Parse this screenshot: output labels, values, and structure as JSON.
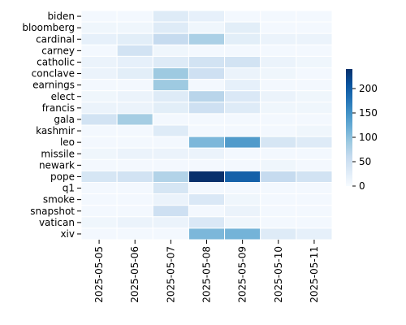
{
  "chart_data": {
    "type": "heatmap",
    "title": "",
    "xlabel": "",
    "ylabel": "",
    "x": [
      "2025-05-05",
      "2025-05-06",
      "2025-05-07",
      "2025-05-08",
      "2025-05-09",
      "2025-05-10",
      "2025-05-11"
    ],
    "y": [
      "biden",
      "bloomberg",
      "cardinal",
      "carney",
      "catholic",
      "conclave",
      "earnings",
      "elect",
      "francis",
      "gala",
      "kashmir",
      "leo",
      "missile",
      "newark",
      "pope",
      "q1",
      "smoke",
      "snapshot",
      "vatican",
      "xiv"
    ],
    "values": [
      [
        5,
        5,
        30,
        20,
        5,
        5,
        5
      ],
      [
        10,
        10,
        30,
        10,
        25,
        5,
        5
      ],
      [
        20,
        25,
        60,
        80,
        25,
        15,
        15
      ],
      [
        5,
        45,
        10,
        5,
        5,
        5,
        5
      ],
      [
        15,
        20,
        30,
        45,
        45,
        15,
        10
      ],
      [
        15,
        25,
        90,
        50,
        15,
        10,
        5
      ],
      [
        5,
        5,
        90,
        5,
        20,
        5,
        5
      ],
      [
        10,
        15,
        30,
        70,
        35,
        15,
        10
      ],
      [
        15,
        15,
        25,
        50,
        30,
        10,
        10
      ],
      [
        45,
        85,
        5,
        5,
        5,
        5,
        5
      ],
      [
        5,
        5,
        30,
        5,
        5,
        5,
        10
      ],
      [
        5,
        5,
        5,
        110,
        140,
        40,
        30
      ],
      [
        10,
        15,
        15,
        15,
        5,
        5,
        5
      ],
      [
        5,
        5,
        5,
        5,
        5,
        10,
        5
      ],
      [
        40,
        45,
        75,
        240,
        195,
        60,
        45
      ],
      [
        5,
        5,
        40,
        5,
        5,
        5,
        5
      ],
      [
        5,
        5,
        15,
        35,
        10,
        5,
        5
      ],
      [
        5,
        5,
        50,
        5,
        15,
        5,
        5
      ],
      [
        10,
        15,
        15,
        35,
        10,
        5,
        5
      ],
      [
        5,
        5,
        5,
        110,
        115,
        30,
        20
      ]
    ],
    "colorbar": {
      "min": 0,
      "max": 240,
      "ticks": [
        0,
        50,
        100,
        150,
        200
      ],
      "colormap": "Blues"
    }
  }
}
